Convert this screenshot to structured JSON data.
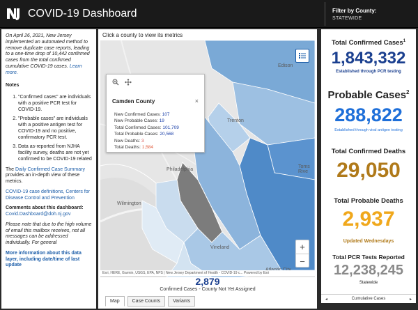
{
  "header": {
    "title": "COVID-19 Dashboard",
    "filter_label": "Filter by County:",
    "filter_value": "STATEWIDE"
  },
  "left": {
    "intro_text": "On April 26, 2021, New Jersey implemented an automated method to remove duplicate case reports, leading to a one-time drop of 10,442 confirmed cases from the total confirmed cumulative COVID-19 cases.",
    "learn_more": "Learn more.",
    "notes_heading": "Notes",
    "notes": [
      "\"Confirmed cases\" are individuals with a positive PCR test for COVID-19.",
      "\"Probable cases\" are individuals with a positive antigen test for COVID-19 and no positive, confirmatory PCR test.",
      "Data as-reported from NJHA facility survey, deaths are not yet confirmed to be COVID-19 related"
    ],
    "summary_pre": "The",
    "summary_link": "Daily Confirmed Case Summary",
    "summary_post": "provides an in-depth view of these metrics.",
    "cdc_link": "COVID-19 case definitions, Centers for Disease Control and Prevention",
    "comments_heading": "Comments about this dashboard:",
    "email": "Covid.Dashboard@doh.nj.gov",
    "email_note": "Please note that due to the high volume of email this mailbox receives, not all messages can be addressed individually. For general",
    "more_info": "More information about this data layer, including date/time of last update"
  },
  "map": {
    "caption": "Click a county to view its metrics",
    "attribution": "Esri, HERE, Garmin, USGS, EPA, NPS | New Jersey Department of Health - COVID-19 c...      Powered by Esri",
    "places": {
      "edison": "Edison",
      "trenton": "Trenton",
      "toms_river": "Toms Rive",
      "philadelphia": "Philadelphia",
      "wilmington": "Wilmington",
      "vineland": "Vineland",
      "atlantic_city": "Atlantic City"
    },
    "zoom_in": "+",
    "zoom_out": "−",
    "popup": {
      "title": "Camden County",
      "close": "×",
      "rows": [
        {
          "label": "New Confirmed Cases:",
          "value": "107"
        },
        {
          "label": "New Probable Cases:",
          "value": "19"
        },
        {
          "label": "Total Confirmed Cases:",
          "value": "101,709"
        },
        {
          "label": "Total Probable Cases:",
          "value": "20,568"
        },
        {
          "label": "New Deaths:",
          "value": "3"
        },
        {
          "label": "Total Deaths:",
          "value": "1,584"
        }
      ]
    },
    "unassigned_value": "2,879",
    "unassigned_label": "Confirmed Cases - County Not Yet Assigned",
    "tabs": [
      "Map",
      "Case Counts",
      "Variants"
    ]
  },
  "stats": {
    "confirmed_label": "Total Confirmed Cases",
    "confirmed_sup": "1",
    "confirmed_value": "1,843,332",
    "confirmed_sub": "Established through PCR testing",
    "probable_label": "Probable Cases",
    "probable_sup": "2",
    "probable_value": "288,822",
    "probable_sub": "Established through viral antigen testing",
    "deaths_label": "Total Confirmed Deaths",
    "deaths_value": "29,050",
    "prob_deaths_label": "Total Probable Deaths",
    "prob_deaths_value": "2,937",
    "prob_deaths_sub": "Updated Wednesdays",
    "pcr_label": "Total PCR Tests Reported",
    "pcr_value": "12,238,245",
    "pcr_sub": "Statewide",
    "footer_label": "Cumulative Cases",
    "footer_prev": "◂",
    "footer_next": "▸"
  },
  "colors": {
    "dark_blue": "#1a3f8f",
    "bright_blue": "#1e6fd9",
    "gold": "#b07a1a",
    "orange": "#f0a81c",
    "gray": "#8a8a8a"
  }
}
